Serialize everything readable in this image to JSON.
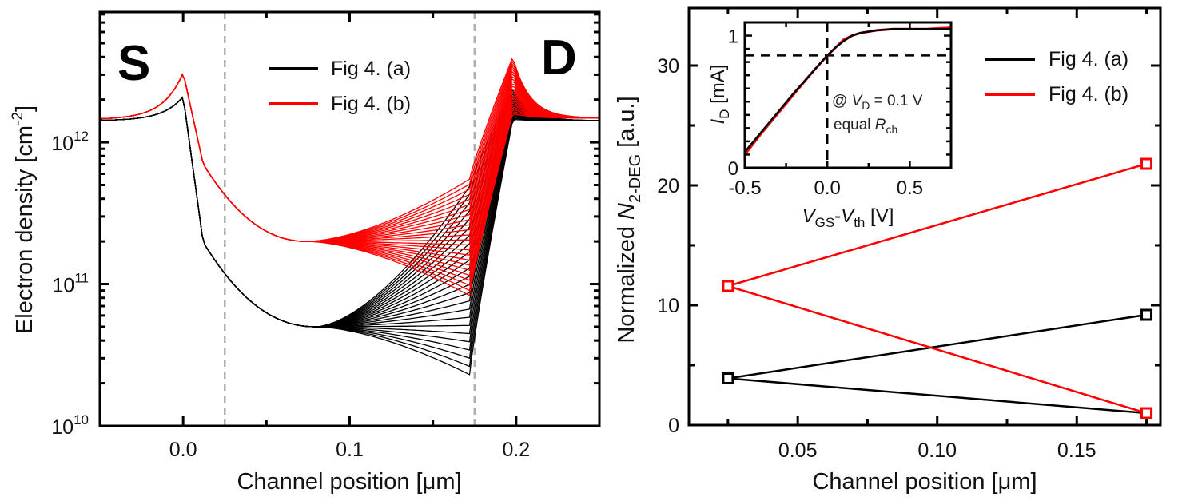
{
  "colors": {
    "series_a": "#000000",
    "series_b": "#ff0000",
    "guide": "#b0b0b0"
  },
  "chart_data": [
    {
      "type": "line",
      "panel": "left",
      "title": "",
      "xlabel": "Channel position [μm]",
      "ylabel": "Electron density [cm⁻²]",
      "yscale": "log",
      "xlim": [
        -0.05,
        0.25
      ],
      "ylim": [
        10000000000.0,
        8300000000000.0
      ],
      "xticks": [
        0.0,
        0.1,
        0.2
      ],
      "xtick_labels": [
        "0.0",
        "0.1",
        "0.2"
      ],
      "yticks": [
        10000000000.0,
        100000000000.0,
        1000000000000.0
      ],
      "ytick_labels": [
        {
          "base": "10",
          "exp": "10"
        },
        {
          "base": "10",
          "exp": "11"
        },
        {
          "base": "10",
          "exp": "12"
        }
      ],
      "vlines": [
        0.025,
        0.175
      ],
      "annotations": [
        {
          "text": "S",
          "x": -0.03,
          "y": 3200000000000.0
        },
        {
          "text": "D",
          "x": 0.216,
          "y": 3200000000000.0
        }
      ],
      "legend": {
        "position": "top-center",
        "entries": [
          "Fig 4. (a)",
          "Fig 4. (b)"
        ]
      },
      "grid": false,
      "series": [
        {
          "name": "Fig 4. (a)",
          "family_size": 24,
          "source_plateau": 1420000000000.0,
          "source_peak": 2100000000000.0,
          "mid_value": 50000000000.0,
          "mid_position": 0.08,
          "near_gate_edge": 90000000000.0,
          "drain_end_range": [
            23000000000.0,
            490000000000.0
          ],
          "drain_peak_range": [
            1450000000000.0,
            2400000000000.0
          ],
          "drain_plateau": 1420000000000.0
        },
        {
          "name": "Fig 4. (b)",
          "family_size": 24,
          "source_plateau": 1450000000000.0,
          "source_peak": 3100000000000.0,
          "mid_value": 200000000000.0,
          "mid_position": 0.075,
          "near_gate_edge": 320000000000.0,
          "drain_end_range": [
            83000000000.0,
            550000000000.0
          ],
          "drain_peak_range": [
            1600000000000.0,
            4000000000000.0
          ],
          "drain_plateau": 1480000000000.0
        }
      ]
    },
    {
      "type": "line",
      "panel": "right",
      "title": "",
      "xlabel": "Channel position [μm]",
      "ylabel": {
        "prefix": "Normalized ",
        "var": "N",
        "sub": "2-DEG",
        "suffix": " [a.u.]"
      },
      "xlim": [
        0.011,
        0.18
      ],
      "ylim": [
        0,
        34.8
      ],
      "xticks": [
        0.05,
        0.1,
        0.15
      ],
      "xtick_labels": [
        "0.05",
        "0.10",
        "0.15"
      ],
      "yticks": [
        0,
        10,
        20,
        30
      ],
      "ytick_labels": [
        "0",
        "10",
        "20",
        "30"
      ],
      "legend": {
        "position": "top-right",
        "entries": [
          "Fig 4. (a)",
          "Fig 4. (b)"
        ]
      },
      "grid": false,
      "marker": "open-square",
      "series": [
        {
          "name": "Fig 4. (a) rising",
          "legend": "Fig 4. (a)",
          "x": [
            0.025,
            0.175
          ],
          "y": [
            3.9,
            9.2
          ]
        },
        {
          "name": "Fig 4. (a) falling",
          "legend": "Fig 4. (a)",
          "x": [
            0.025,
            0.175
          ],
          "y": [
            3.9,
            1.0
          ]
        },
        {
          "name": "Fig 4. (b) rising",
          "legend": "Fig 4. (b)",
          "x": [
            0.025,
            0.175
          ],
          "y": [
            11.6,
            21.8
          ]
        },
        {
          "name": "Fig 4. (b) falling",
          "legend": "Fig 4. (b)",
          "x": [
            0.025,
            0.175
          ],
          "y": [
            11.6,
            1.0
          ]
        }
      ]
    },
    {
      "type": "line",
      "panel": "inset",
      "title": "",
      "xlabel": {
        "v1": "V",
        "s1": "GS",
        "dash": "-",
        "v2": "V",
        "s2": "th",
        "unit": " [V]"
      },
      "ylabel": {
        "var": "I",
        "sub": "D",
        "unit": " [mA]"
      },
      "xlim": [
        -0.5,
        0.75
      ],
      "ylim": [
        0,
        1.1
      ],
      "xticks": [
        -0.5,
        0.0,
        0.5
      ],
      "xtick_labels": [
        "-0.5",
        "0.0",
        "0.5"
      ],
      "yticks": [
        0,
        1
      ],
      "ytick_labels": [
        "0",
        "1"
      ],
      "hline": 0.85,
      "vline": 0.0,
      "note": {
        "at": "@ ",
        "var": "V",
        "sub": "D",
        "eq": " = 0.1 V",
        "line2": "equal ",
        "var2": "R",
        "sub2": "ch"
      },
      "series": [
        {
          "name": "Fig 4. (a)",
          "x": [
            -0.5,
            -0.4,
            -0.3,
            -0.2,
            -0.1,
            0.0,
            0.05,
            0.1,
            0.15,
            0.2,
            0.3,
            0.4,
            0.5,
            0.6,
            0.75
          ],
          "y": [
            0.12,
            0.27,
            0.42,
            0.57,
            0.71,
            0.85,
            0.91,
            0.96,
            1.0,
            1.02,
            1.04,
            1.05,
            1.05,
            1.05,
            1.05
          ]
        },
        {
          "name": "Fig 4. (b)",
          "x": [
            -0.5,
            -0.4,
            -0.3,
            -0.2,
            -0.1,
            0.0,
            0.05,
            0.1,
            0.15,
            0.2,
            0.3,
            0.4,
            0.5,
            0.6,
            0.75
          ],
          "y": [
            0.1,
            0.26,
            0.41,
            0.56,
            0.71,
            0.85,
            0.91,
            0.97,
            1.0,
            1.02,
            1.04,
            1.05,
            1.05,
            1.05,
            1.06
          ]
        }
      ]
    }
  ]
}
